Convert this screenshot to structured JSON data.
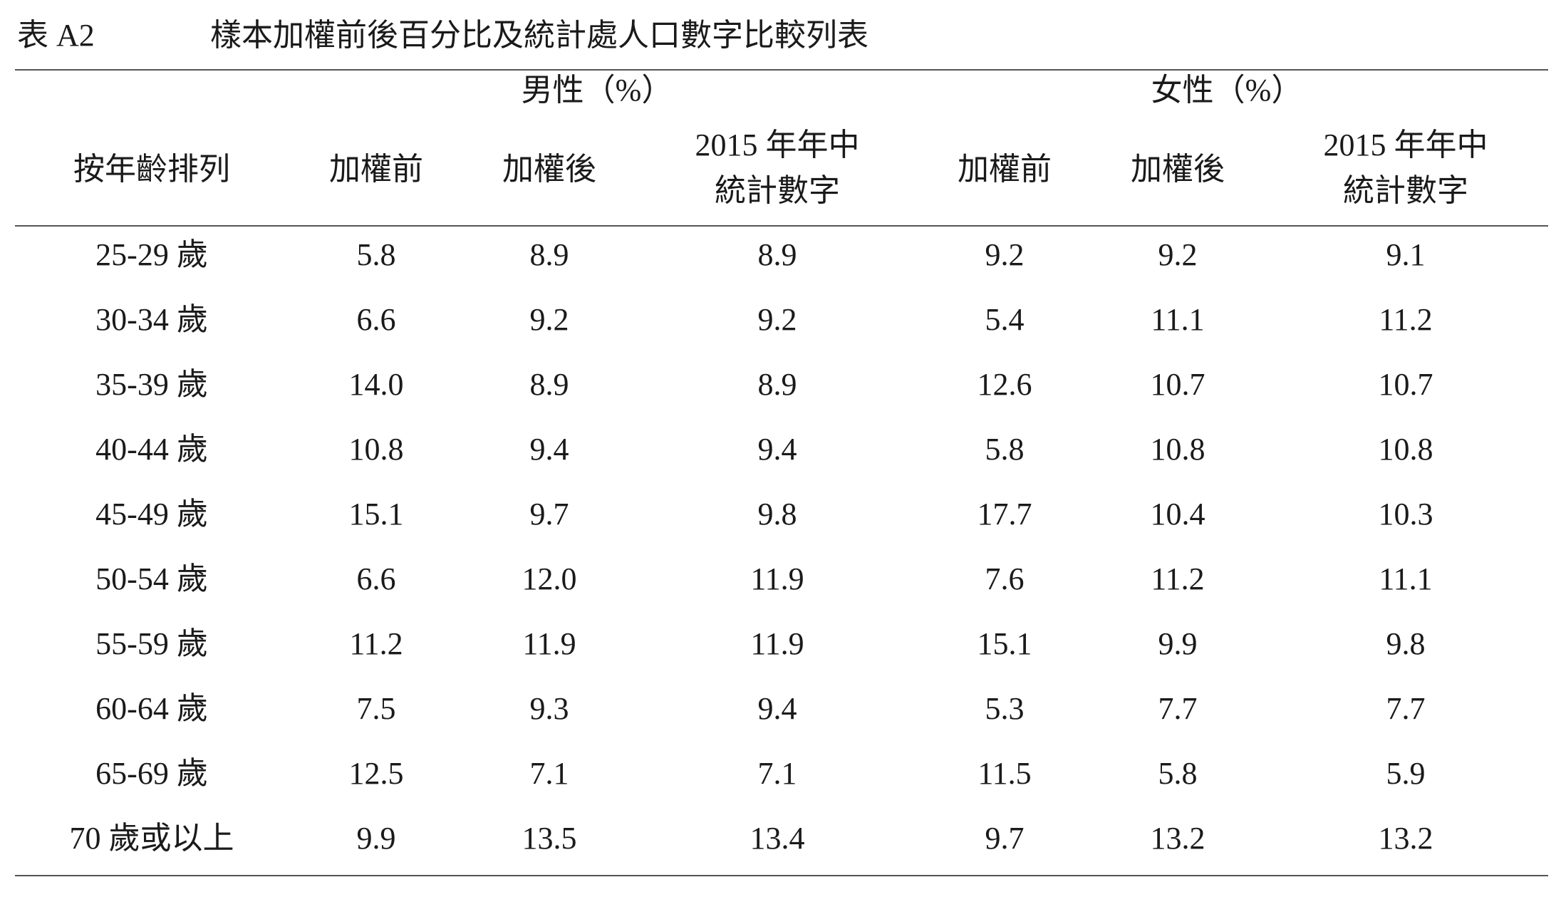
{
  "title": {
    "label": "表 A2",
    "text": "樣本加權前後百分比及統計處人口數字比較列表"
  },
  "header": {
    "groups": [
      "男性（%）",
      "女性（%）"
    ],
    "columns": [
      [
        "按年齡排列"
      ],
      [
        "加權前"
      ],
      [
        "加權後"
      ],
      [
        "2015 年年中",
        "統計數字"
      ],
      [
        "加權前"
      ],
      [
        "加權後"
      ],
      [
        "2015 年年中",
        "統計數字"
      ]
    ]
  },
  "table": {
    "rows": [
      [
        "25-29 歲",
        "5.8",
        "8.9",
        "8.9",
        "9.2",
        "9.2",
        "9.1"
      ],
      [
        "30-34 歲",
        "6.6",
        "9.2",
        "9.2",
        "5.4",
        "11.1",
        "11.2"
      ],
      [
        "35-39 歲",
        "14.0",
        "8.9",
        "8.9",
        "12.6",
        "10.7",
        "10.7"
      ],
      [
        "40-44 歲",
        "10.8",
        "9.4",
        "9.4",
        "5.8",
        "10.8",
        "10.8"
      ],
      [
        "45-49 歲",
        "15.1",
        "9.7",
        "9.8",
        "17.7",
        "10.4",
        "10.3"
      ],
      [
        "50-54 歲",
        "6.6",
        "12.0",
        "11.9",
        "7.6",
        "11.2",
        "11.1"
      ],
      [
        "55-59 歲",
        "11.2",
        "11.9",
        "11.9",
        "15.1",
        "9.9",
        "9.8"
      ],
      [
        "60-64 歲",
        "7.5",
        "9.3",
        "9.4",
        "5.3",
        "7.7",
        "7.7"
      ],
      [
        "65-69 歲",
        "12.5",
        "7.1",
        "7.1",
        "11.5",
        "5.8",
        "5.9"
      ],
      [
        "70 歲或以上",
        "9.9",
        "13.5",
        "13.4",
        "9.7",
        "13.2",
        "13.2"
      ]
    ]
  }
}
